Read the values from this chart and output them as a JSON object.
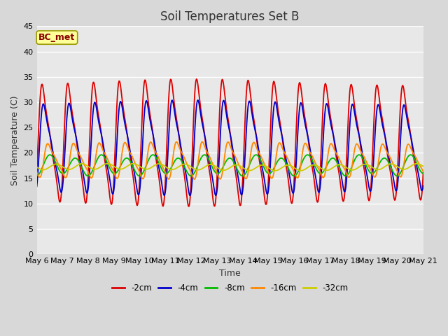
{
  "title": "Soil Temperatures Set B",
  "xlabel": "Time",
  "ylabel": "Soil Temperature (C)",
  "annotation": "BC_met",
  "ylim": [
    0,
    45
  ],
  "yticks": [
    0,
    5,
    10,
    15,
    20,
    25,
    30,
    35,
    40,
    45
  ],
  "n_days": 15,
  "points_per_day": 48,
  "series_colors": [
    "#dd0000",
    "#0000cc",
    "#00bb00",
    "#ff8800",
    "#cccc00"
  ],
  "series_labels": [
    "-2cm",
    "-4cm",
    "-8cm",
    "-16cm",
    "-32cm"
  ],
  "bg_color": "#e8e8e8",
  "grid_color": "#ffffff",
  "annotation_bg": "#ffff99",
  "annotation_border": "#999900",
  "title_fontsize": 12,
  "label_fontsize": 9,
  "tick_fontsize": 8
}
